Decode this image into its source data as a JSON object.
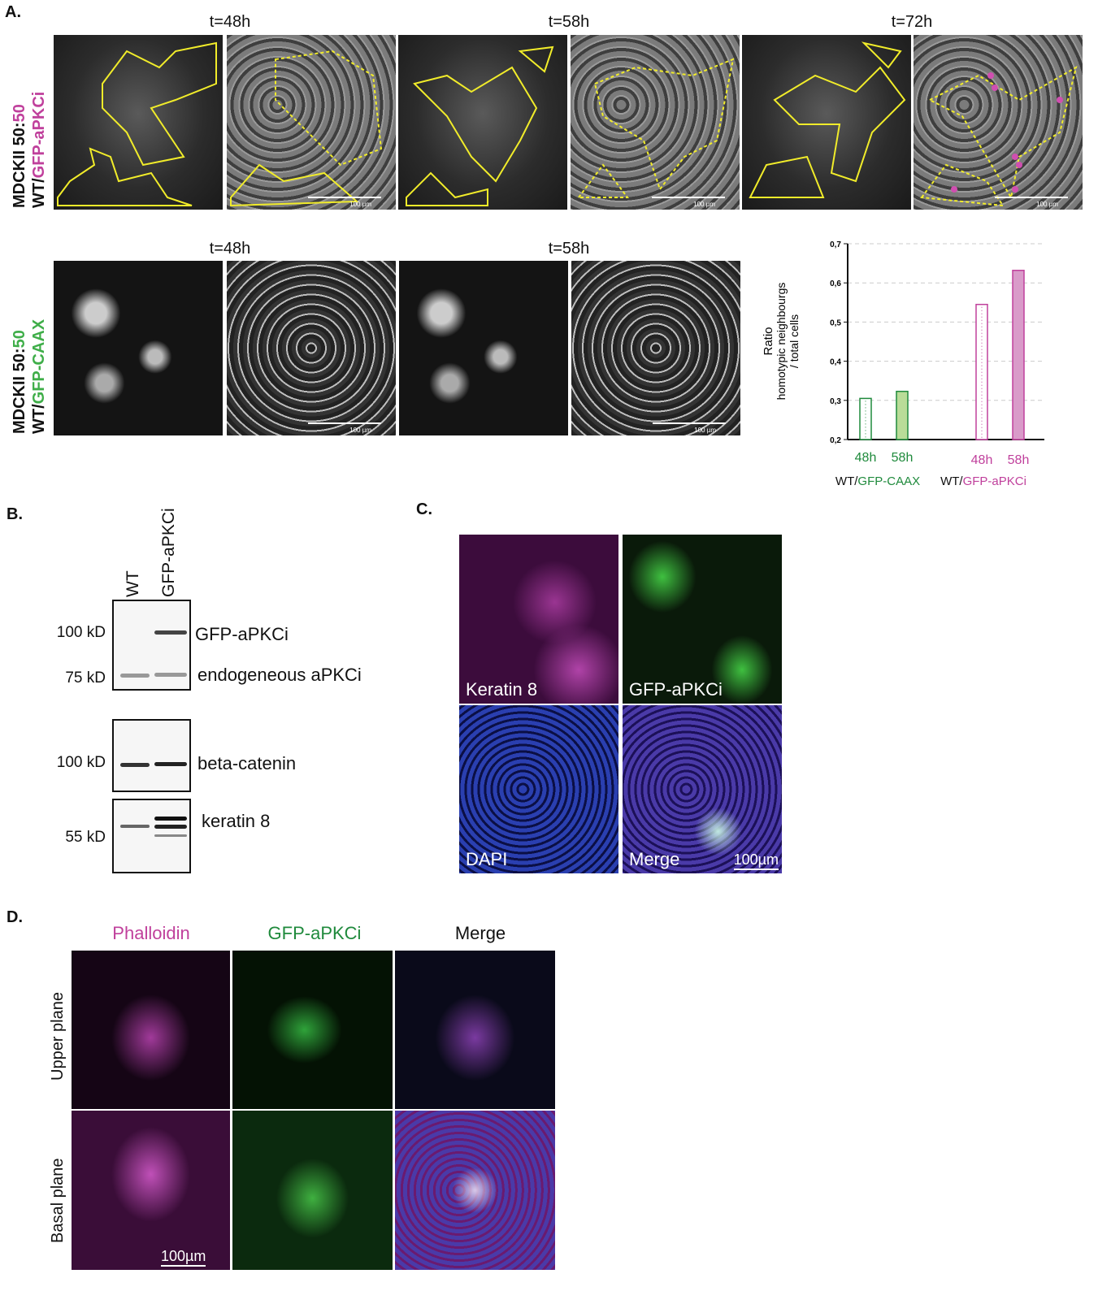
{
  "panels": {
    "A": {
      "label": "A.",
      "row1": {
        "ylabel_line1": "MDCKII 50:",
        "ylabel_line1_accent": "50",
        "ylabel_line2_prefix": "WT/",
        "ylabel_line2_accent": "GFP-aPKCi",
        "timepoints": [
          "t=48h",
          "t=58h",
          "t=72h"
        ],
        "scale_bar": "100 µm"
      },
      "row2": {
        "ylabel_line1": "MDCKII 50:",
        "ylabel_line1_accent": "50",
        "ylabel_line2_prefix": "WT/",
        "ylabel_line2_accent": "GFP-CAAX",
        "timepoints": [
          "t=48h",
          "t=58h"
        ],
        "scale_bar": "100 µm"
      },
      "colors": {
        "green": "#1f8a3c",
        "magenta": "#c0409c",
        "outline": "#f1ec2a"
      }
    },
    "chart_data": {
      "type": "bar",
      "ylabel": "Ratio homotypic neighbourgs / total cells",
      "ylabel_lines": [
        "Ratio",
        "homotypic neighbourgs",
        "/ total cells"
      ],
      "ylim": [
        0.2,
        0.7
      ],
      "yticks": [
        "0,2",
        "0,3",
        "0,4",
        "0,5",
        "0,6",
        "0,7"
      ],
      "grid": true,
      "categories": [
        "48h",
        "58h",
        "48h",
        "58h"
      ],
      "groups": [
        {
          "prefix": "WT/",
          "name": "GFP-CAAX",
          "color": "#1f8a3c"
        },
        {
          "prefix": "WT/",
          "name": "GFP-aPKCi",
          "color": "#c0409c"
        }
      ],
      "values": [
        0.305,
        0.323,
        0.545,
        0.632
      ],
      "styles": [
        "dotted-outline",
        "filled",
        "dotted-outline",
        "filled"
      ],
      "fills": [
        "#ffffff",
        "#b9dc98",
        "#ffffff",
        "#d99bc9"
      ],
      "strokes": [
        "#1f8a3c",
        "#1f8a3c",
        "#c0409c",
        "#c0409c"
      ]
    },
    "B": {
      "label": "B.",
      "lanes": [
        "WT",
        "GFP-aPKCi"
      ],
      "markers": [
        "100 kD",
        "75 kD",
        "100 kD",
        "55 kD"
      ],
      "bands": [
        "GFP-aPKCi",
        "endogeneous aPKCi",
        "beta-catenin",
        "keratin 8"
      ]
    },
    "C": {
      "label": "C.",
      "images": [
        "Keratin 8",
        "GFP-aPKCi",
        "DAPI",
        "Merge"
      ],
      "scale_bar": "100µm"
    },
    "D": {
      "label": "D.",
      "columns": [
        "Phalloidin",
        "GFP-aPKCi",
        "Merge"
      ],
      "rows": [
        "Upper plane",
        "Basal plane"
      ],
      "scale_bar": "100µm"
    }
  }
}
